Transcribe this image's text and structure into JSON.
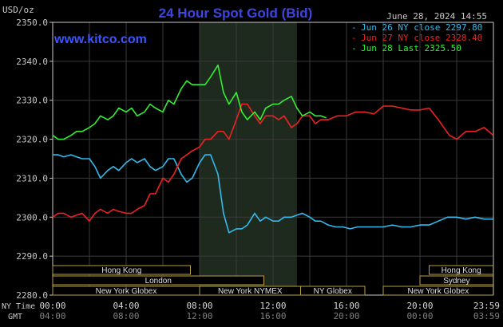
{
  "chart_data": {
    "type": "line",
    "title": "24 Hour Spot Gold (Bid)",
    "watermark": "www.kitco.com",
    "timestamp": "June 28, 2024 14:55",
    "ylabel": "USD/oz",
    "ylim": [
      2280,
      2350
    ],
    "yticks": [
      "2280.0",
      "2290.0",
      "2300.0",
      "2310.0",
      "2320.0",
      "2330.0",
      "2340.0",
      "2350.0"
    ],
    "xlim": [
      0,
      24
    ],
    "x_row_label_ny": "NY Time",
    "x_row_label_gmt": "GMT",
    "xticks_ny": [
      "00:00",
      "04:00",
      "08:00",
      "12:00",
      "16:00",
      "20:00",
      "23:59"
    ],
    "xticks_gmt": [
      "04:00",
      "08:00",
      "12:00",
      "16:00",
      "20:00",
      "00:00",
      "03:59"
    ],
    "grid": true,
    "legend_position": "top-right",
    "highlight_range": [
      8,
      13.3
    ],
    "colors": {
      "background": "#000000",
      "grid": "#3a3a3a",
      "axis": "#c8c8c8",
      "title": "#3d46e0",
      "watermark": "#3d55ff",
      "highlight": "#1e2a1e"
    },
    "series": [
      {
        "name": "Jun 26 NY close 2297.80",
        "color": "#33bbee",
        "x": [
          0,
          0.3,
          0.6,
          1.0,
          1.3,
          1.6,
          2.0,
          2.3,
          2.6,
          3.0,
          3.3,
          3.6,
          4.0,
          4.3,
          4.6,
          5.0,
          5.3,
          5.6,
          6.0,
          6.3,
          6.6,
          7.0,
          7.3,
          7.6,
          8.0,
          8.3,
          8.6,
          9.0,
          9.3,
          9.6,
          10.0,
          10.3,
          10.6,
          11.0,
          11.3,
          11.6,
          12.0,
          12.3,
          12.6,
          13.0,
          13.3,
          13.6,
          14.0,
          14.3,
          14.6,
          15.0,
          15.4,
          15.8,
          16.2,
          16.6,
          17.0,
          17.5,
          18.0,
          18.5,
          19.0,
          19.5,
          20.0,
          20.5,
          21.0,
          21.5,
          22.0,
          22.5,
          23.0,
          23.5,
          23.99
        ],
        "values": [
          2316,
          2316,
          2315.5,
          2316,
          2315.5,
          2315,
          2315,
          2313,
          2310,
          2312,
          2313,
          2312,
          2314,
          2315,
          2314,
          2315,
          2313,
          2312,
          2313,
          2315,
          2315,
          2311,
          2309,
          2310,
          2314,
          2316,
          2316,
          2311,
          2301,
          2296,
          2297,
          2297,
          2298,
          2301,
          2299,
          2300,
          2299,
          2299,
          2300,
          2300,
          2300.5,
          2301,
          2300,
          2299,
          2299,
          2298,
          2297.5,
          2297.5,
          2297,
          2297.5,
          2297.5,
          2297.5,
          2297.5,
          2298,
          2297.5,
          2297.5,
          2298,
          2298,
          2299,
          2300,
          2300,
          2299.5,
          2300,
          2299.5,
          2299.5
        ]
      },
      {
        "name": "Jun 27 NY close 2328.40",
        "color": "#ee2222",
        "x": [
          0,
          0.3,
          0.6,
          1.0,
          1.3,
          1.6,
          2.0,
          2.3,
          2.6,
          3.0,
          3.3,
          3.6,
          4.0,
          4.3,
          4.6,
          5.0,
          5.3,
          5.6,
          6.0,
          6.3,
          6.6,
          7.0,
          7.3,
          7.6,
          8.0,
          8.3,
          8.6,
          9.0,
          9.3,
          9.6,
          10.0,
          10.3,
          10.6,
          11.0,
          11.3,
          11.6,
          12.0,
          12.3,
          12.6,
          13.0,
          13.3,
          13.6,
          14.0,
          14.3,
          14.6,
          15.0,
          15.5,
          16.0,
          16.5,
          17.0,
          17.5,
          18.0,
          18.5,
          19.0,
          19.5,
          20.0,
          20.5,
          21.0,
          21.3,
          21.6,
          22.0,
          22.5,
          23.0,
          23.5,
          23.99
        ],
        "values": [
          2300,
          2301,
          2301,
          2300,
          2300.5,
          2301,
          2299,
          2301,
          2302,
          2301,
          2302,
          2301.5,
          2301,
          2301,
          2302,
          2303,
          2306,
          2306,
          2310,
          2309,
          2311,
          2315,
          2316,
          2317,
          2318,
          2320,
          2320,
          2322,
          2322,
          2320,
          2325,
          2329,
          2329,
          2326,
          2324,
          2326,
          2326,
          2325,
          2326,
          2323,
          2324,
          2326,
          2326,
          2324,
          2325,
          2325,
          2326,
          2326,
          2327,
          2327,
          2326.5,
          2328.5,
          2328.5,
          2328,
          2327.5,
          2327.5,
          2328,
          2325,
          2323,
          2321,
          2320,
          2322,
          2322,
          2323,
          2321
        ]
      },
      {
        "name": "Jun 28 Last 2325.50",
        "color": "#33ee33",
        "x": [
          0,
          0.3,
          0.6,
          1.0,
          1.3,
          1.6,
          2.0,
          2.3,
          2.6,
          3.0,
          3.3,
          3.6,
          4.0,
          4.3,
          4.6,
          5.0,
          5.3,
          5.6,
          6.0,
          6.3,
          6.6,
          7.0,
          7.3,
          7.6,
          8.0,
          8.3,
          8.6,
          9.0,
          9.3,
          9.6,
          10.0,
          10.3,
          10.6,
          11.0,
          11.3,
          11.6,
          12.0,
          12.3,
          12.6,
          13.0,
          13.3,
          13.6,
          14.0,
          14.3,
          14.6,
          14.9
        ],
        "values": [
          2321,
          2320,
          2320,
          2321,
          2322,
          2322,
          2323,
          2324,
          2326,
          2325,
          2326,
          2328,
          2327,
          2328,
          2326,
          2327,
          2329,
          2328,
          2327,
          2330,
          2329,
          2333,
          2335,
          2334,
          2334,
          2334,
          2336,
          2339,
          2332,
          2329,
          2332,
          2327,
          2325,
          2327,
          2325,
          2328,
          2329,
          2329,
          2330,
          2331,
          2328,
          2326,
          2327,
          2326,
          2326,
          2325.5
        ]
      }
    ],
    "market_sessions": [
      {
        "label": "Hong Kong",
        "start": 0,
        "end": 7.5,
        "row": 0
      },
      {
        "label": "London",
        "start": 0,
        "end": 11.5,
        "row": 1
      },
      {
        "label": "New York Globex",
        "start": 0,
        "end": 8,
        "row": 2
      },
      {
        "label": "New York NYMEX",
        "start": 8,
        "end": 13.5,
        "row": 2
      },
      {
        "label": "NY Globex",
        "start": 13.5,
        "end": 17,
        "row": 2
      },
      {
        "label": "Hong Kong",
        "start": 20.5,
        "end": 23.99,
        "row": 0
      },
      {
        "label": "Sydney",
        "start": 20,
        "end": 23.99,
        "row": 1
      },
      {
        "label": "New York Globex",
        "start": 18,
        "end": 23.99,
        "row": 2
      }
    ]
  }
}
